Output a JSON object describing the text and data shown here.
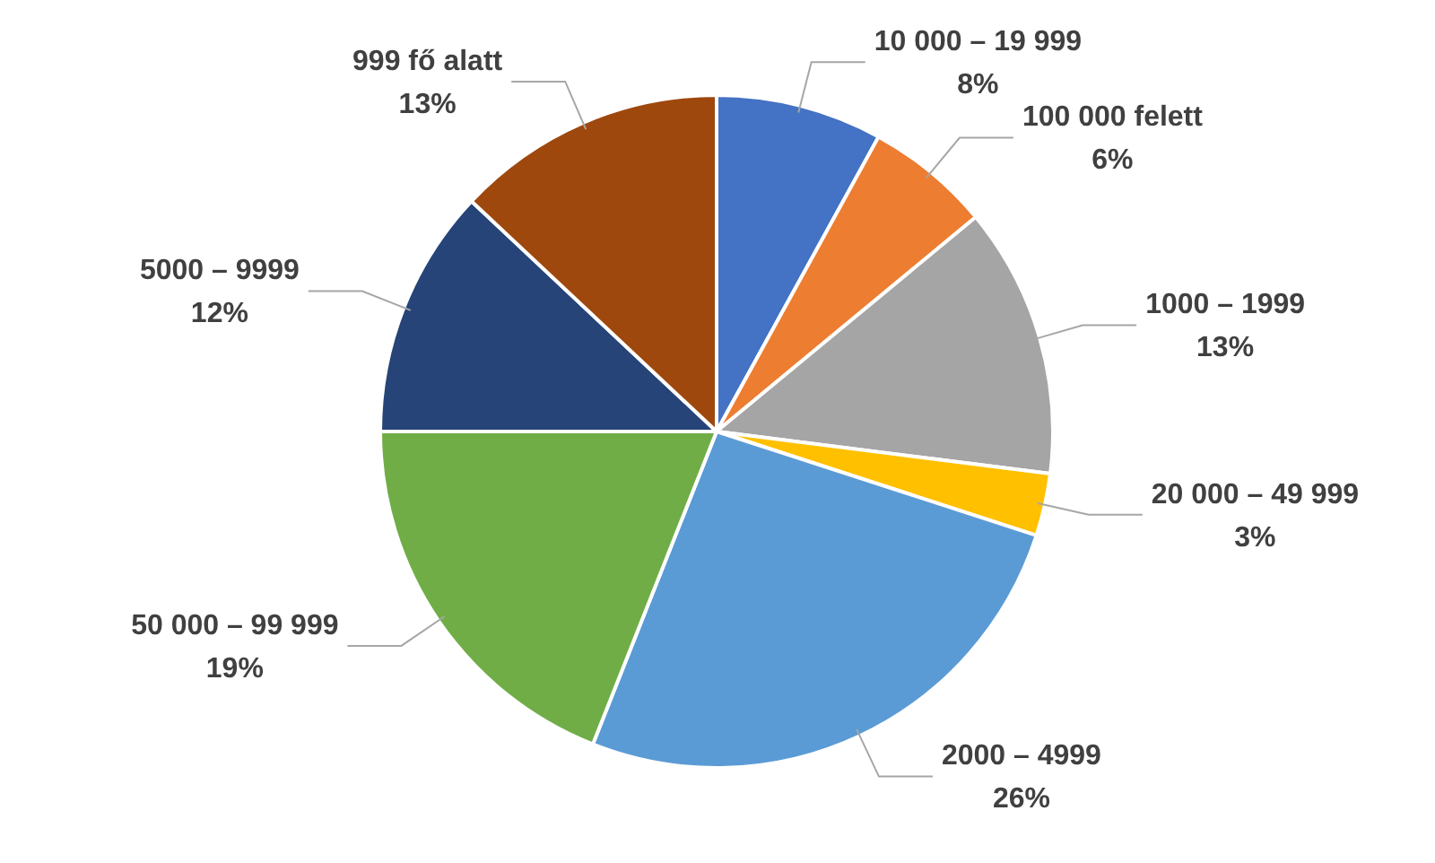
{
  "chart_data": {
    "type": "pie",
    "categories": [
      "10 000 – 19 999",
      "100 000 felett",
      "1000 – 1999",
      "20 000 – 49 999",
      "2000 – 4999",
      "50 000 – 99 999",
      "5000 – 9999",
      "999 fő alatt"
    ],
    "values": [
      8,
      6,
      13,
      3,
      26,
      19,
      12,
      13
    ],
    "value_labels": [
      "8%",
      "6%",
      "13%",
      "3%",
      "26%",
      "19%",
      "12%",
      "13%"
    ],
    "colors": [
      "#4472c4",
      "#ed7d31",
      "#a5a5a5",
      "#ffc000",
      "#5b9bd5",
      "#70ad47",
      "#264478",
      "#9e480e"
    ]
  }
}
